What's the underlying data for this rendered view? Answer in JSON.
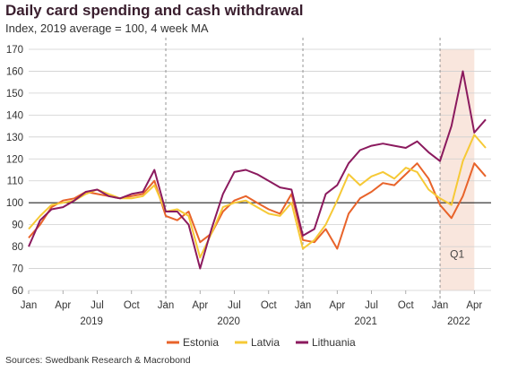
{
  "title": "Daily card spending and cash withdrawal",
  "subtitle": "Index, 2019 average = 100, 4 week MA",
  "source": "Sources: Swedbank Research & Macrobond",
  "annotation": "Q1",
  "colors": {
    "Estonia": "#e8632a",
    "Latvia": "#f6c936",
    "Lithuania": "#8b1a5e",
    "shade": "#f9e6dd"
  },
  "chart_data": {
    "type": "line",
    "title": "Daily card spending and cash withdrawal",
    "subtitle": "Index, 2019 average = 100, 4 week MA",
    "x_unit": "month",
    "xlim": [
      "2019-01-01",
      "2022-05-15"
    ],
    "ylim": [
      60,
      170
    ],
    "y_ticks": [
      60,
      70,
      80,
      90,
      100,
      110,
      120,
      130,
      140,
      150,
      160,
      170
    ],
    "x_tick_labels": [
      "Jan",
      "Apr",
      "Jul",
      "Oct",
      "Jan",
      "Apr",
      "Jul",
      "Oct",
      "Jan",
      "Apr",
      "Jul",
      "Oct",
      "Jan",
      "Apr"
    ],
    "x_tick_dates": [
      "2019-01",
      "2019-04",
      "2019-07",
      "2019-10",
      "2020-01",
      "2020-04",
      "2020-07",
      "2020-10",
      "2021-01",
      "2021-04",
      "2021-07",
      "2021-10",
      "2022-01",
      "2022-04"
    ],
    "year_labels": [
      "2019",
      "2020",
      "2021",
      "2022"
    ],
    "vertical_lines": [
      "2020-01-01",
      "2021-01-01",
      "2022-01-01"
    ],
    "shaded_range": [
      "2022-01-01",
      "2022-03-31"
    ],
    "reference_line": 100,
    "grid": true,
    "legend_position": "bottom",
    "series": [
      {
        "name": "Estonia",
        "x": [
          "2019-01",
          "2019-02",
          "2019-03",
          "2019-04",
          "2019-05",
          "2019-06",
          "2019-07",
          "2019-08",
          "2019-09",
          "2019-10",
          "2019-11",
          "2019-12",
          "2020-01",
          "2020-02",
          "2020-03",
          "2020-04",
          "2020-05",
          "2020-06",
          "2020-07",
          "2020-08",
          "2020-09",
          "2020-10",
          "2020-11",
          "2020-12",
          "2021-01",
          "2021-02",
          "2021-03",
          "2021-04",
          "2021-05",
          "2021-06",
          "2021-07",
          "2021-08",
          "2021-09",
          "2021-10",
          "2021-11",
          "2021-12",
          "2022-01",
          "2022-02",
          "2022-03",
          "2022-04",
          "2022-05"
        ],
        "y": [
          84,
          90,
          98,
          101,
          102,
          105,
          104,
          103,
          102,
          103,
          104,
          110,
          94,
          92,
          96,
          82,
          86,
          96,
          101,
          103,
          100,
          97,
          95,
          104,
          83,
          82,
          88,
          79,
          95,
          102,
          105,
          109,
          108,
          113,
          118,
          111,
          99,
          93,
          103,
          118,
          112
        ]
      },
      {
        "name": "Latvia",
        "x": [
          "2019-01",
          "2019-02",
          "2019-03",
          "2019-04",
          "2019-05",
          "2019-06",
          "2019-07",
          "2019-08",
          "2019-09",
          "2019-10",
          "2019-11",
          "2019-12",
          "2020-01",
          "2020-02",
          "2020-03",
          "2020-04",
          "2020-05",
          "2020-06",
          "2020-07",
          "2020-08",
          "2020-09",
          "2020-10",
          "2020-11",
          "2020-12",
          "2021-01",
          "2021-02",
          "2021-03",
          "2021-04",
          "2021-05",
          "2021-06",
          "2021-07",
          "2021-08",
          "2021-09",
          "2021-10",
          "2021-11",
          "2021-12",
          "2022-01",
          "2022-02",
          "2022-03",
          "2022-04",
          "2022-05"
        ],
        "y": [
          88,
          94,
          99,
          100,
          101,
          104,
          106,
          104,
          102,
          102,
          103,
          108,
          96,
          97,
          94,
          75,
          86,
          98,
          100,
          101,
          98,
          95,
          94,
          100,
          79,
          83,
          90,
          101,
          113,
          108,
          112,
          114,
          111,
          116,
          114,
          106,
          102,
          99,
          119,
          131,
          125
        ]
      },
      {
        "name": "Lithuania",
        "x": [
          "2019-01",
          "2019-02",
          "2019-03",
          "2019-04",
          "2019-05",
          "2019-06",
          "2019-07",
          "2019-08",
          "2019-09",
          "2019-10",
          "2019-11",
          "2019-12",
          "2020-01",
          "2020-02",
          "2020-03",
          "2020-04",
          "2020-05",
          "2020-06",
          "2020-07",
          "2020-08",
          "2020-09",
          "2020-10",
          "2020-11",
          "2020-12",
          "2021-01",
          "2021-02",
          "2021-03",
          "2021-04",
          "2021-05",
          "2021-06",
          "2021-07",
          "2021-08",
          "2021-09",
          "2021-10",
          "2021-11",
          "2021-12",
          "2022-01",
          "2022-02",
          "2022-03",
          "2022-04",
          "2022-05"
        ],
        "y": [
          80,
          92,
          97,
          98,
          101,
          105,
          106,
          103,
          102,
          104,
          105,
          115,
          96,
          96,
          90,
          70,
          88,
          104,
          114,
          115,
          113,
          110,
          107,
          106,
          85,
          88,
          104,
          108,
          118,
          124,
          126,
          127,
          126,
          125,
          128,
          123,
          119,
          135,
          160,
          132,
          138
        ]
      }
    ]
  }
}
